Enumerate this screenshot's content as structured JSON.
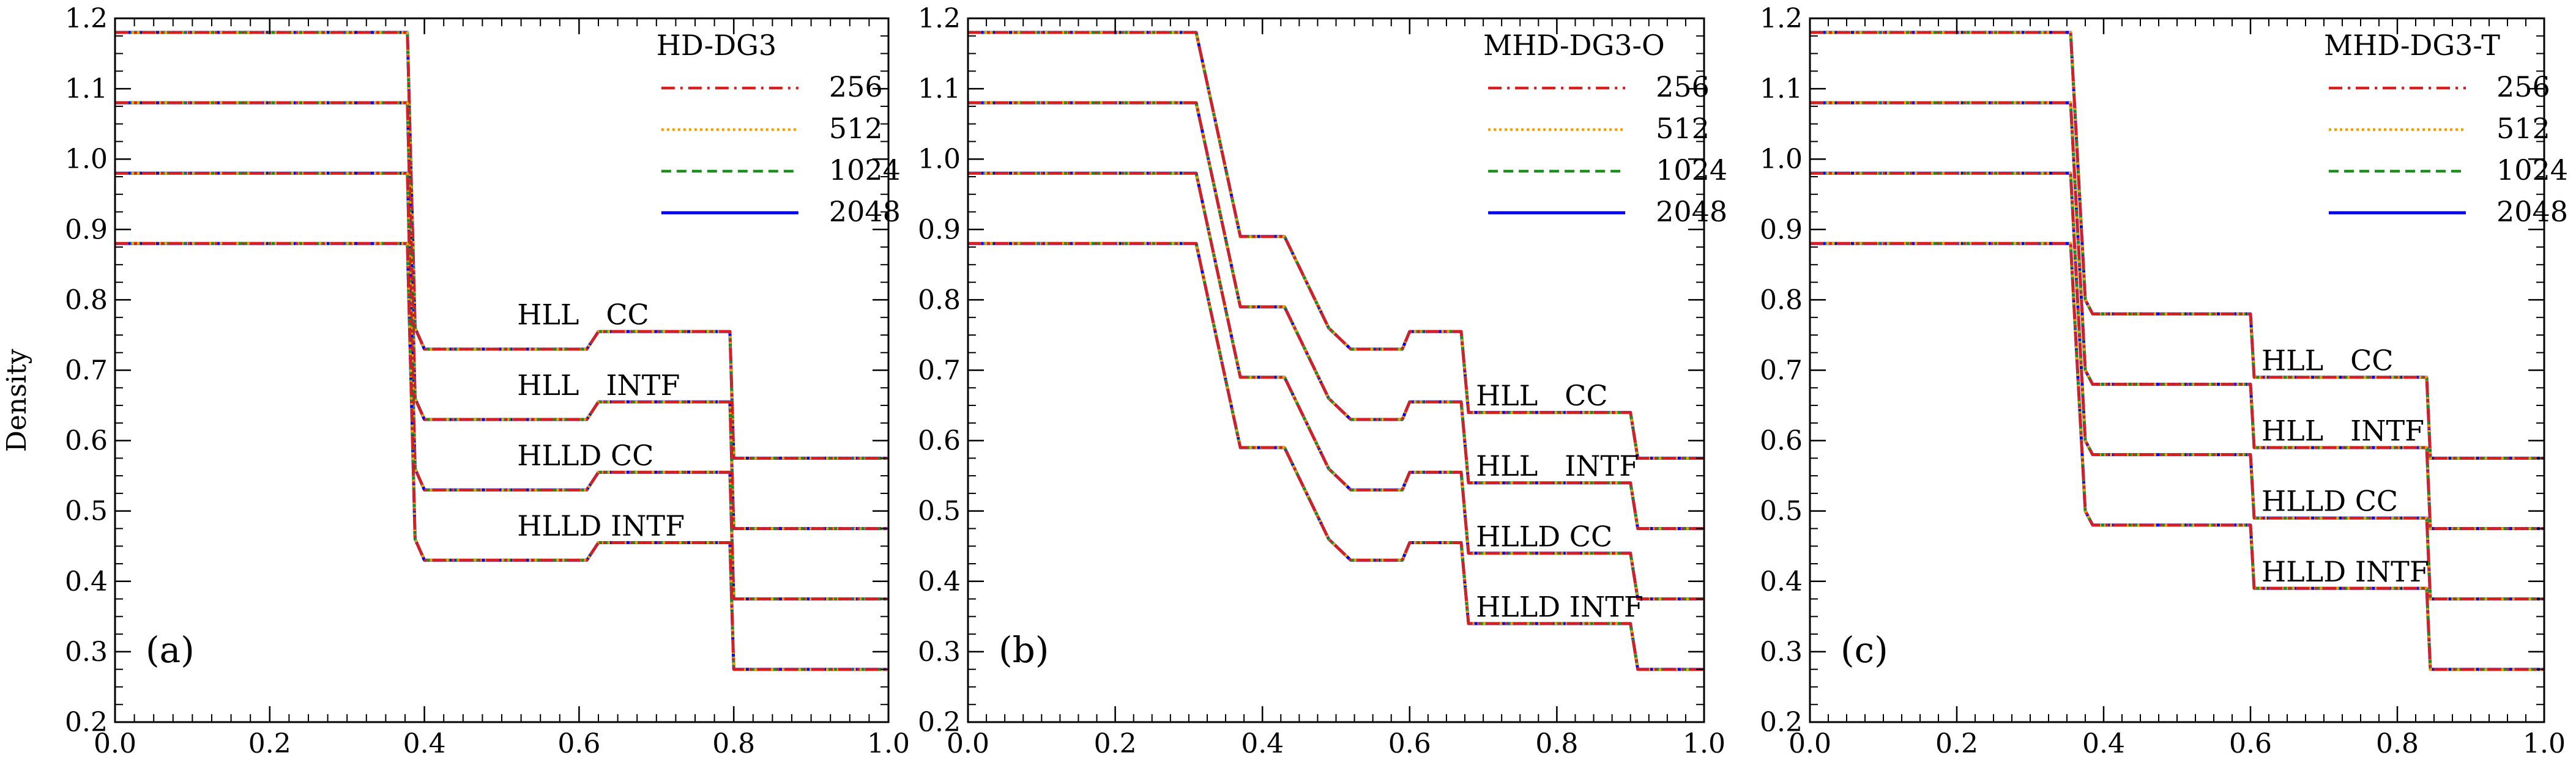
{
  "chart_data": {
    "type": "line",
    "ylabel": "Density",
    "xlim": [
      0.0,
      1.0
    ],
    "ylim": [
      0.2,
      1.2
    ],
    "xticks": [
      "0.0",
      "0.2",
      "0.4",
      "0.6",
      "0.8",
      "1.0"
    ],
    "yticks": [
      "0.2",
      "0.3",
      "0.4",
      "0.5",
      "0.6",
      "0.7",
      "0.8",
      "0.9",
      "1.0",
      "1.1",
      "1.2"
    ],
    "legend": [
      {
        "name": "256",
        "color": "#d62020",
        "style": "dashdot"
      },
      {
        "name": "512",
        "color": "#f5a000",
        "style": "dotted"
      },
      {
        "name": "1024",
        "color": "#1e8c1e",
        "style": "dashed"
      },
      {
        "name": "2048",
        "color": "#0000ee",
        "style": "solid"
      }
    ],
    "panels": [
      {
        "tag": "(a)",
        "title": "HD-DG3",
        "curves": [
          {
            "x": [
              0.0,
              0.378,
              0.388,
              0.4,
              0.61,
              0.625,
              0.795,
              0.8,
              1.0
            ],
            "y": [
              1.18,
              1.18,
              0.76,
              0.73,
              0.73,
              0.755,
              0.755,
              0.575,
              0.575
            ]
          },
          {
            "x": [
              0.0,
              0.378,
              0.388,
              0.4,
              0.61,
              0.625,
              0.795,
              0.8,
              1.0
            ],
            "y": [
              1.08,
              1.08,
              0.66,
              0.63,
              0.63,
              0.655,
              0.655,
              0.475,
              0.475
            ]
          },
          {
            "x": [
              0.0,
              0.378,
              0.388,
              0.4,
              0.61,
              0.625,
              0.795,
              0.8,
              1.0
            ],
            "y": [
              0.98,
              0.98,
              0.56,
              0.53,
              0.53,
              0.555,
              0.555,
              0.375,
              0.375
            ]
          },
          {
            "x": [
              0.0,
              0.378,
              0.388,
              0.4,
              0.61,
              0.625,
              0.795,
              0.8,
              1.0
            ],
            "y": [
              0.88,
              0.88,
              0.46,
              0.43,
              0.43,
              0.455,
              0.455,
              0.275,
              0.275
            ]
          }
        ],
        "annotations": [
          {
            "text": "HLL   CC",
            "x": 0.52,
            "y": 0.765
          },
          {
            "text": "HLL   INTF",
            "x": 0.52,
            "y": 0.665
          },
          {
            "text": "HLLD CC",
            "x": 0.52,
            "y": 0.565
          },
          {
            "text": "HLLD INTF",
            "x": 0.52,
            "y": 0.465
          }
        ]
      },
      {
        "tag": "(b)",
        "title": "MHD-DG3-O",
        "curves": [
          {
            "x": [
              0.0,
              0.31,
              0.37,
              0.43,
              0.49,
              0.52,
              0.59,
              0.6,
              0.67,
              0.68,
              0.9,
              0.91,
              1.0
            ],
            "y": [
              1.18,
              1.18,
              0.89,
              0.89,
              0.76,
              0.73,
              0.73,
              0.755,
              0.755,
              0.64,
              0.64,
              0.575,
              0.575
            ]
          },
          {
            "x": [
              0.0,
              0.31,
              0.37,
              0.43,
              0.49,
              0.52,
              0.59,
              0.6,
              0.67,
              0.68,
              0.9,
              0.91,
              1.0
            ],
            "y": [
              1.08,
              1.08,
              0.79,
              0.79,
              0.66,
              0.63,
              0.63,
              0.655,
              0.655,
              0.54,
              0.54,
              0.475,
              0.475
            ]
          },
          {
            "x": [
              0.0,
              0.31,
              0.37,
              0.43,
              0.49,
              0.52,
              0.59,
              0.6,
              0.67,
              0.68,
              0.9,
              0.91,
              1.0
            ],
            "y": [
              0.98,
              0.98,
              0.69,
              0.69,
              0.56,
              0.53,
              0.53,
              0.555,
              0.555,
              0.44,
              0.44,
              0.375,
              0.375
            ]
          },
          {
            "x": [
              0.0,
              0.31,
              0.37,
              0.43,
              0.49,
              0.52,
              0.59,
              0.6,
              0.67,
              0.68,
              0.9,
              0.91,
              1.0
            ],
            "y": [
              0.88,
              0.88,
              0.59,
              0.59,
              0.46,
              0.43,
              0.43,
              0.455,
              0.455,
              0.34,
              0.34,
              0.275,
              0.275
            ]
          }
        ],
        "annotations": [
          {
            "text": "HLL   CC",
            "x": 0.69,
            "y": 0.65
          },
          {
            "text": "HLL   INTF",
            "x": 0.69,
            "y": 0.55
          },
          {
            "text": "HLLD CC",
            "x": 0.69,
            "y": 0.45
          },
          {
            "text": "HLLD INTF",
            "x": 0.69,
            "y": 0.35
          }
        ]
      },
      {
        "tag": "(c)",
        "title": "MHD-DG3-T",
        "curves": [
          {
            "x": [
              0.0,
              0.355,
              0.375,
              0.385,
              0.6,
              0.605,
              0.84,
              0.845,
              1.0
            ],
            "y": [
              1.18,
              1.18,
              0.8,
              0.78,
              0.78,
              0.69,
              0.69,
              0.575,
              0.575
            ]
          },
          {
            "x": [
              0.0,
              0.355,
              0.375,
              0.385,
              0.6,
              0.605,
              0.84,
              0.845,
              1.0
            ],
            "y": [
              1.08,
              1.08,
              0.7,
              0.68,
              0.68,
              0.59,
              0.59,
              0.475,
              0.475
            ]
          },
          {
            "x": [
              0.0,
              0.355,
              0.375,
              0.385,
              0.6,
              0.605,
              0.84,
              0.845,
              1.0
            ],
            "y": [
              0.98,
              0.98,
              0.6,
              0.58,
              0.58,
              0.49,
              0.49,
              0.375,
              0.375
            ]
          },
          {
            "x": [
              0.0,
              0.355,
              0.375,
              0.385,
              0.6,
              0.605,
              0.84,
              0.845,
              1.0
            ],
            "y": [
              0.88,
              0.88,
              0.5,
              0.48,
              0.48,
              0.39,
              0.39,
              0.275,
              0.275
            ]
          }
        ],
        "annotations": [
          {
            "text": "HLL   CC",
            "x": 0.615,
            "y": 0.7
          },
          {
            "text": "HLL   INTF",
            "x": 0.615,
            "y": 0.6
          },
          {
            "text": "HLLD CC",
            "x": 0.615,
            "y": 0.5
          },
          {
            "text": "HLLD INTF",
            "x": 0.615,
            "y": 0.4
          }
        ]
      }
    ]
  }
}
